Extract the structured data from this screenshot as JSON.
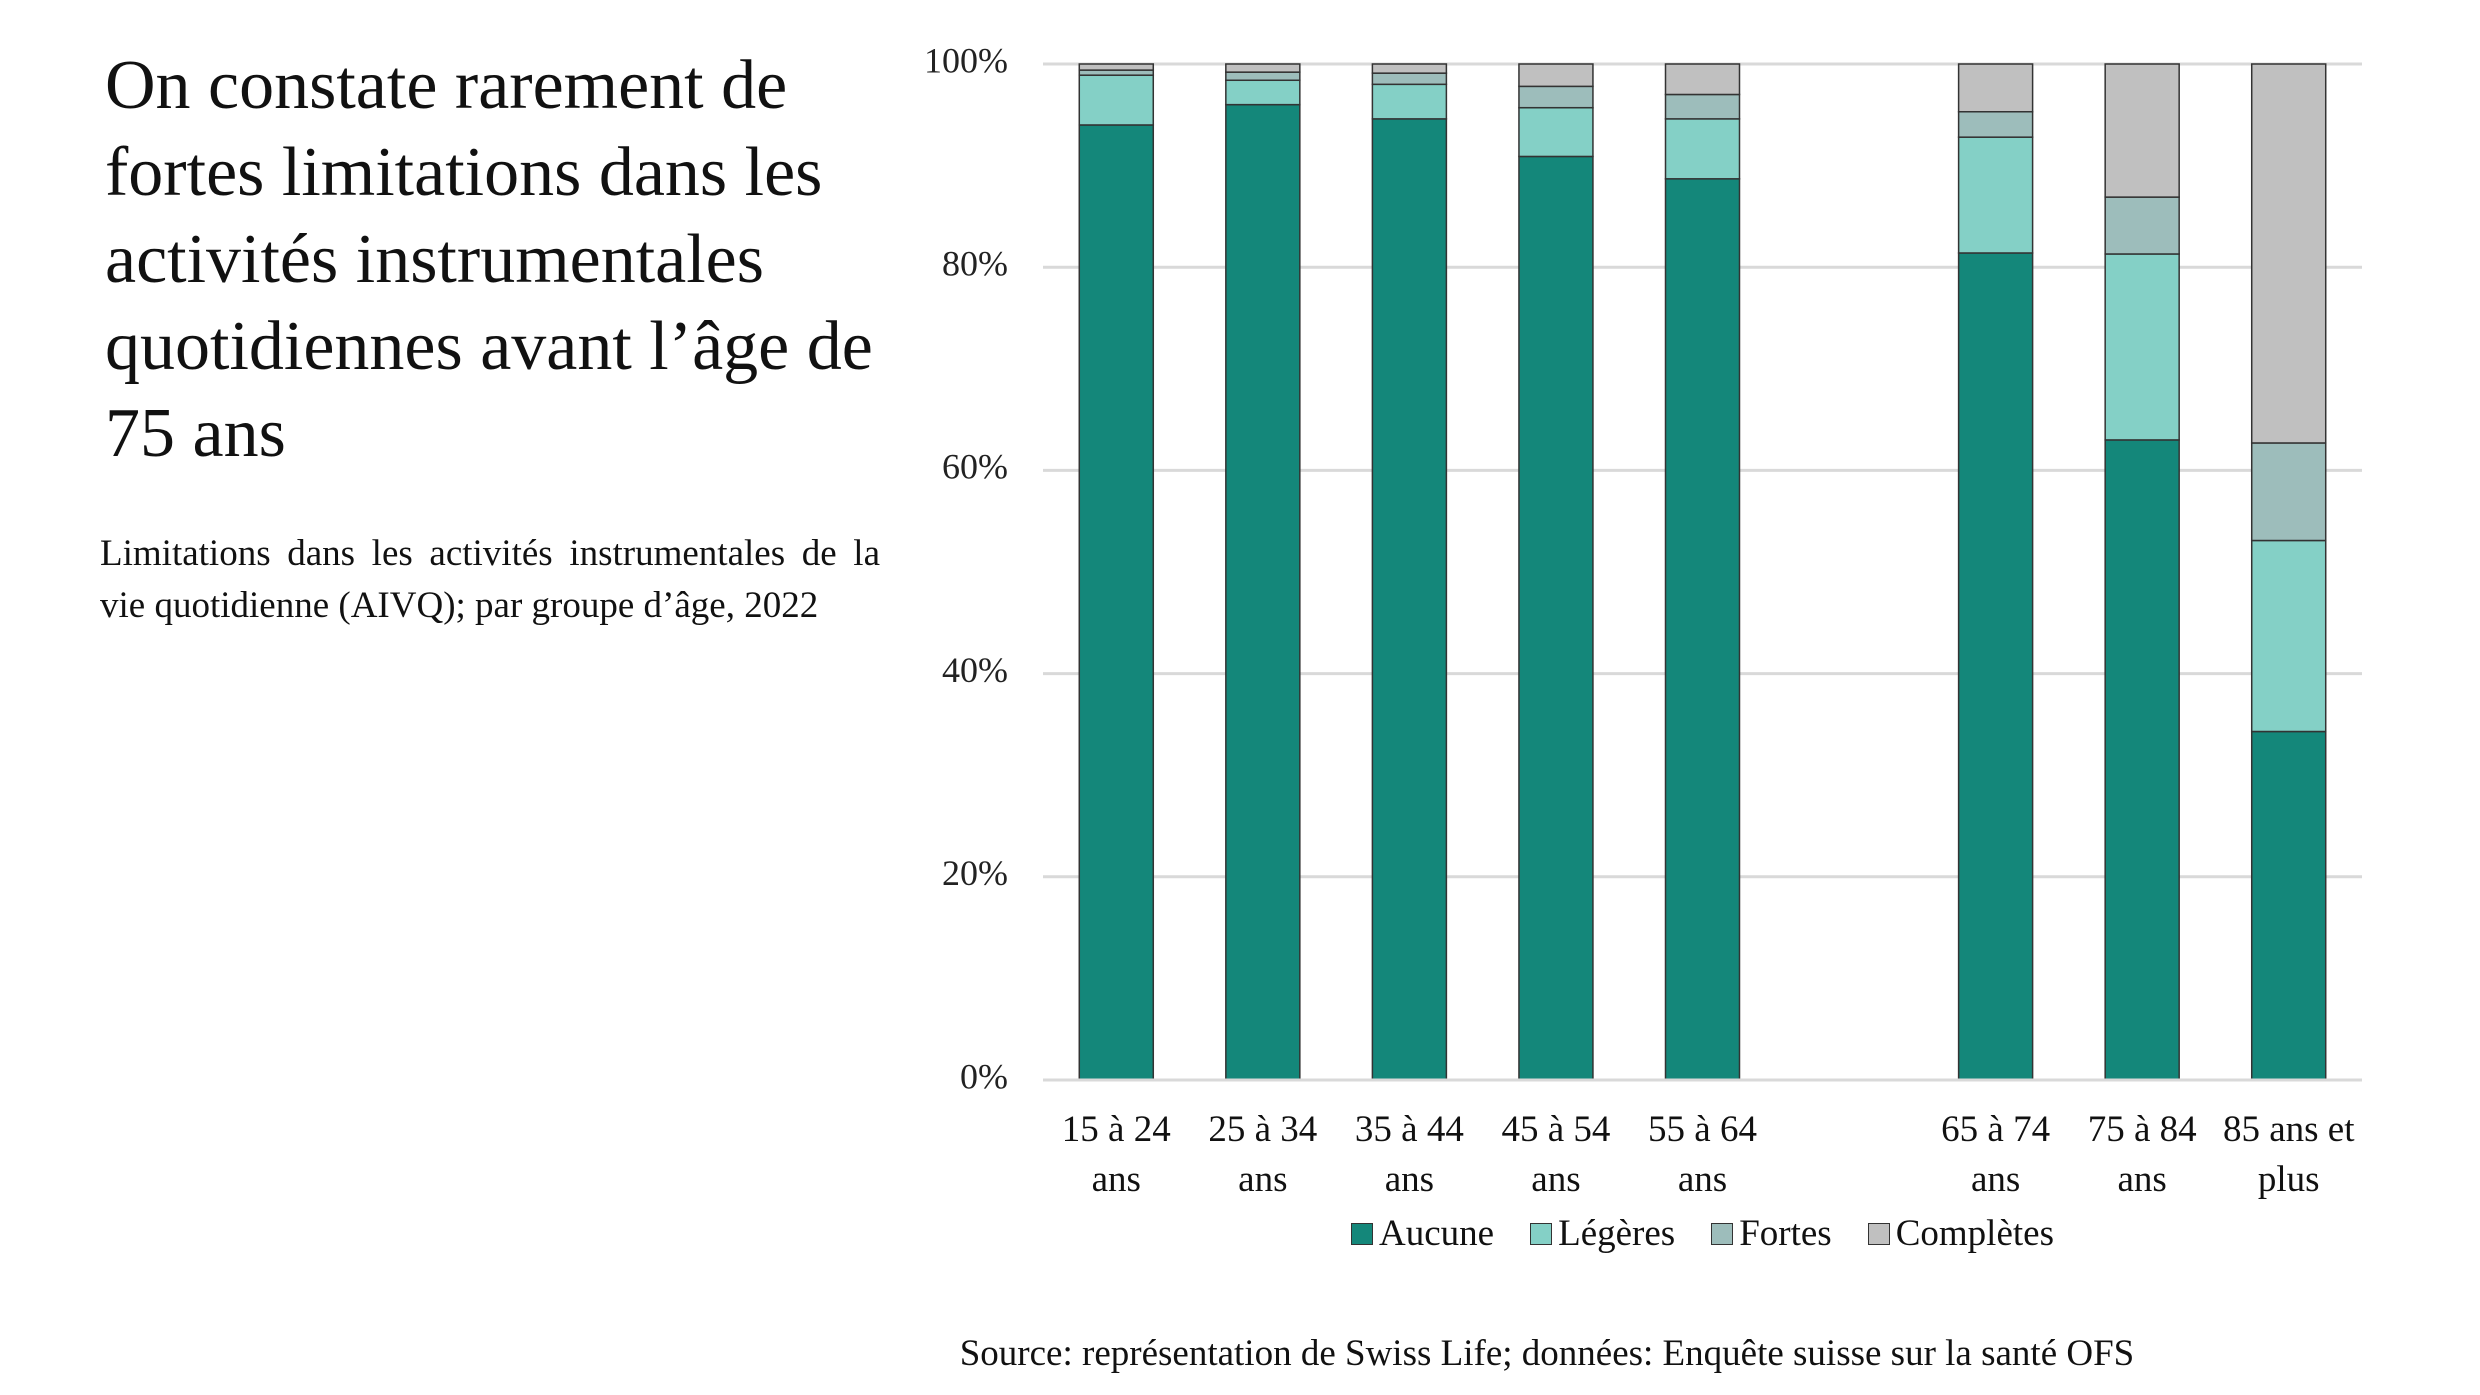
{
  "chart_data": {
    "type": "stacked_bar",
    "title": "On constate rarement de fortes limitations dans les activités instru­mentales quotidiennes avant l’âge de 75 ans",
    "subtitle": "Limitations dans les activités instrumentales de la vie quotidienne (AIVQ); par groupe d’âge, 2022",
    "source": "Source: représentation de Swiss Life; données: Enquête suisse sur la santé OFS",
    "categories": [
      "15 à 24 ans",
      "25 à 34 ans",
      "35 à 44 ans",
      "45 à 54 ans",
      "55 à 64 ans",
      null,
      "65 à 74 ans",
      "75 à 84 ans",
      "85 ans et plus"
    ],
    "series": [
      {
        "name": "Aucune",
        "color": "#14877a",
        "values": [
          94,
          96,
          94.6,
          90.9,
          88.7,
          null,
          81.4,
          63.0,
          34.3
        ]
      },
      {
        "name": "Légères",
        "color": "#84d0c6",
        "values": [
          4.9,
          2.4,
          3.4,
          4.8,
          5.9,
          null,
          11.4,
          18.3,
          18.8
        ]
      },
      {
        "name": "Fortes",
        "color": "#9dbdbb",
        "values": [
          0.5,
          0.8,
          1.1,
          2.1,
          2.4,
          null,
          2.5,
          5.6,
          9.6
        ]
      },
      {
        "name": "Complètes",
        "color": "#c0c0c0",
        "values": [
          0.6,
          0.8,
          0.9,
          2.2,
          3.0,
          null,
          4.7,
          13.1,
          37.3
        ]
      }
    ],
    "ylim": [
      0,
      100
    ],
    "yticks": [
      {
        "value": 0,
        "label": "0%"
      },
      {
        "value": 20,
        "label": "20%"
      },
      {
        "value": 40,
        "label": "40%"
      },
      {
        "value": 60,
        "label": "60%"
      },
      {
        "value": 80,
        "label": "80%"
      },
      {
        "value": 100,
        "label": "100%"
      }
    ],
    "grid": true
  }
}
